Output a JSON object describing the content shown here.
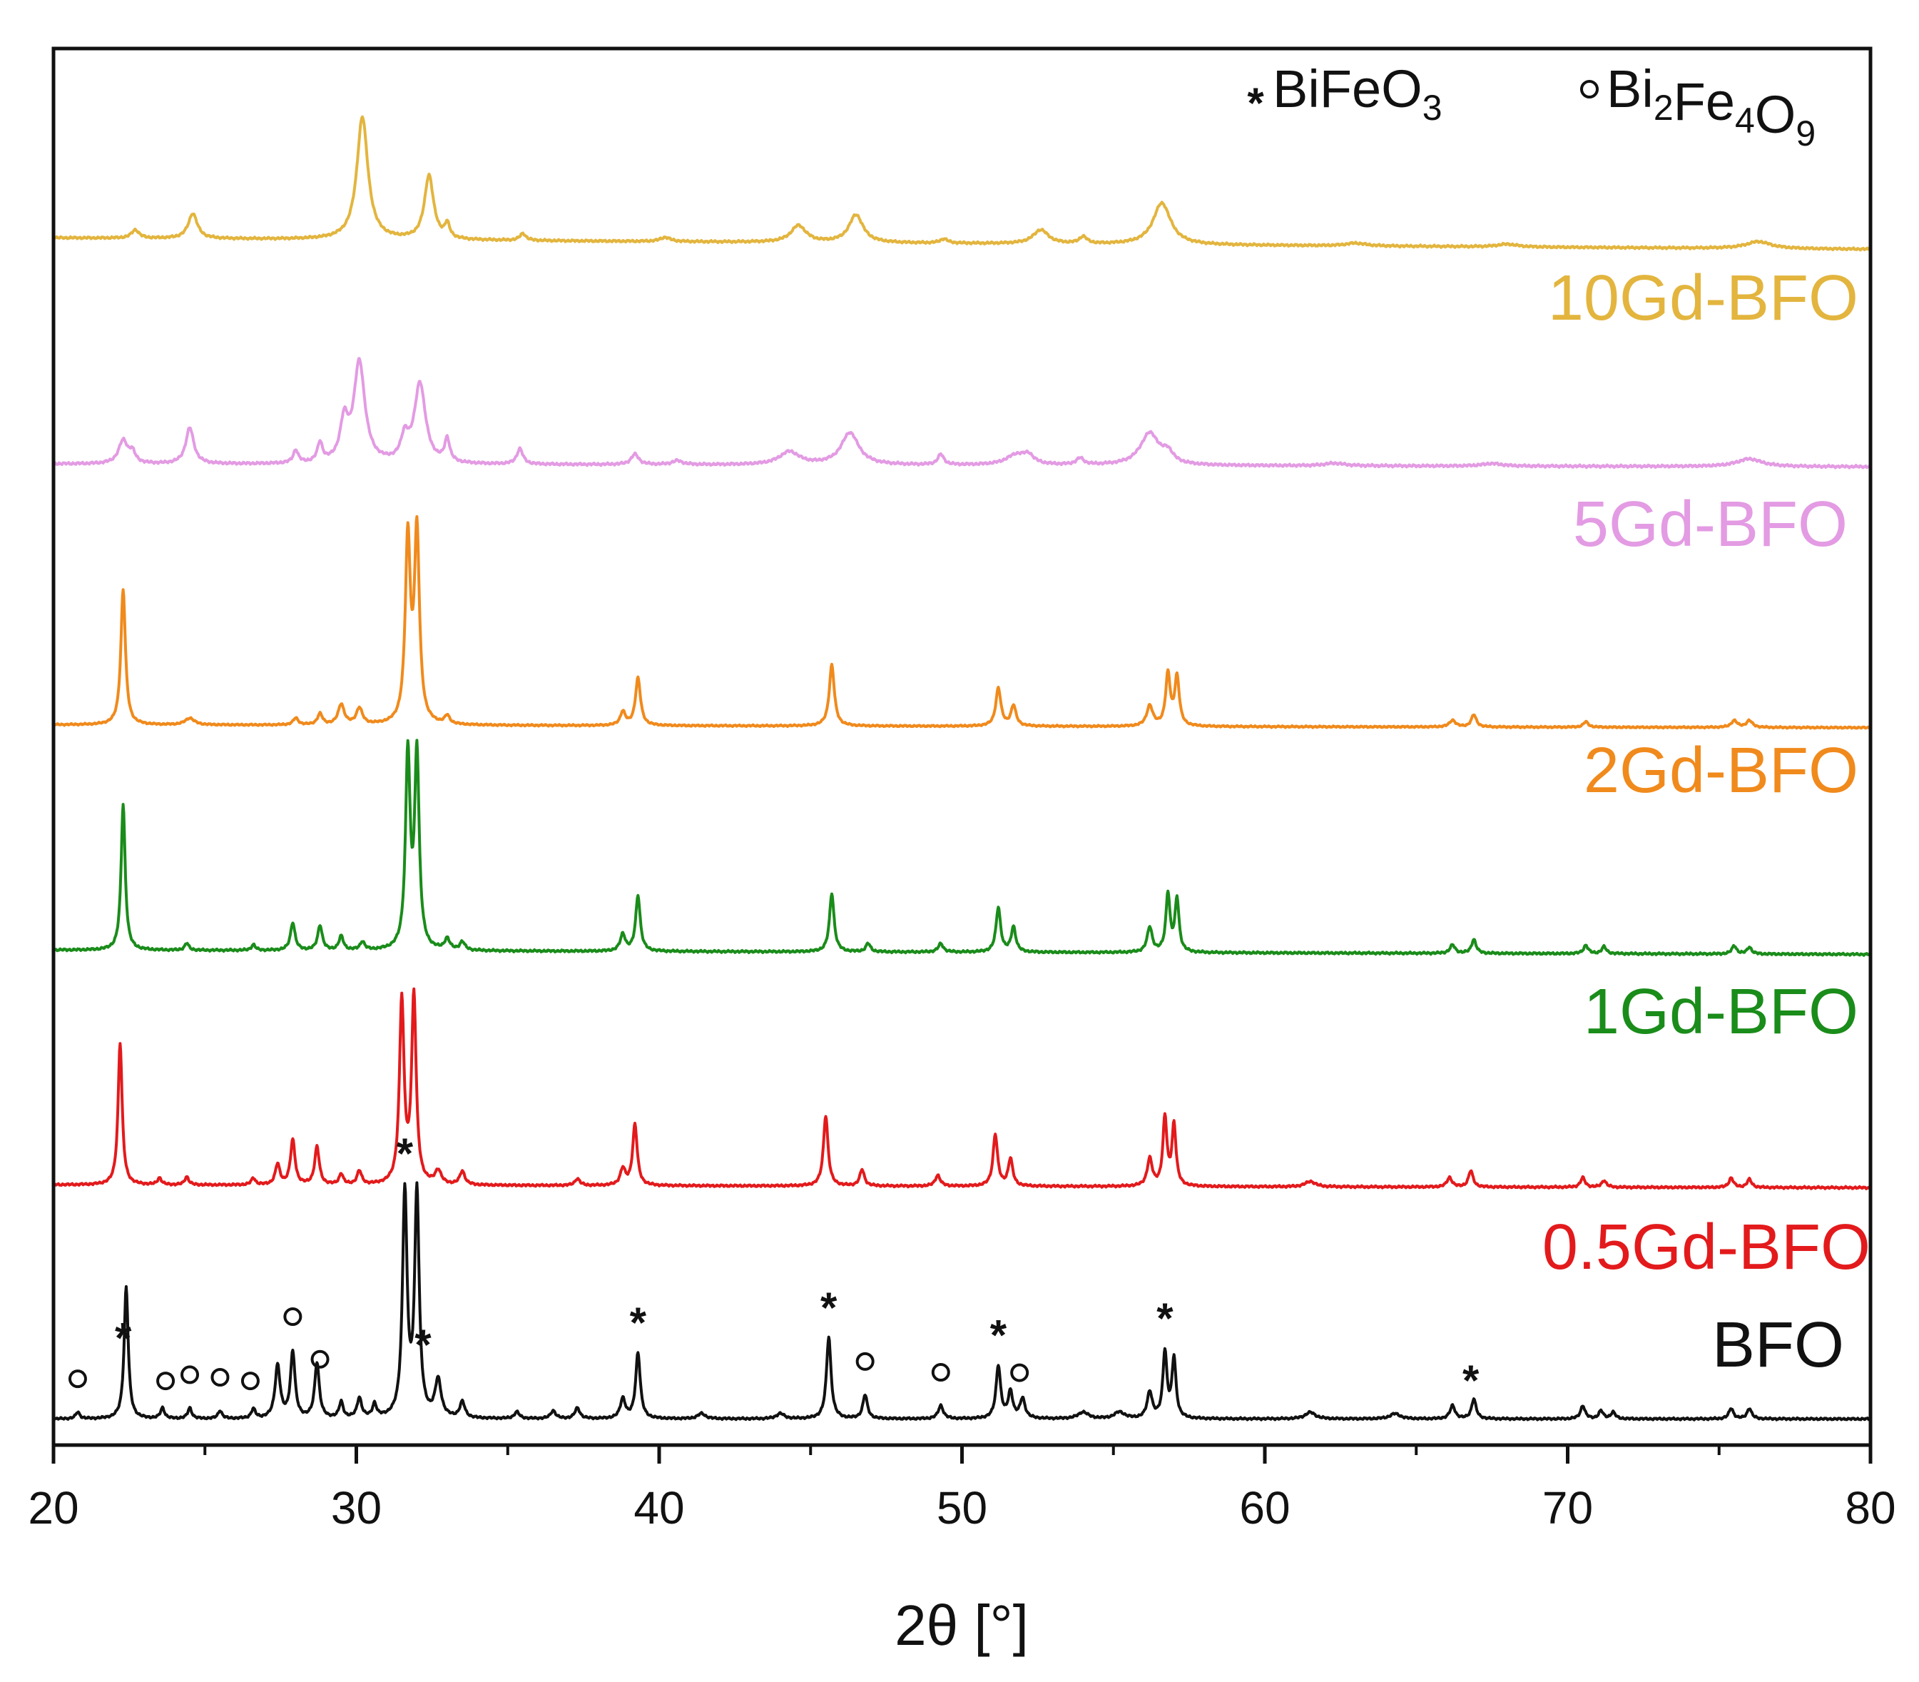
{
  "chart_data": {
    "type": "line",
    "title": "",
    "xlabel": "2θ [°]",
    "ylabel": "",
    "xlim": [
      20,
      80
    ],
    "xticks": [
      20,
      30,
      40,
      50,
      60,
      70,
      80
    ],
    "stacked_offsets": true,
    "legend": [
      {
        "symbol": "*",
        "text": "BiFeO",
        "sub": "3",
        "text2": "",
        "sub2": "",
        "text3": "",
        "sub3": ""
      },
      {
        "symbol": "o",
        "text": "Bi",
        "sub": "2",
        "text2": "Fe",
        "sub2": "4",
        "text3": "O",
        "sub3": "9"
      }
    ],
    "series": [
      {
        "name": "BFO",
        "color": "#111111",
        "noise": 0.05,
        "peaks": [
          [
            20.8,
            0.05,
            0.08
          ],
          [
            22.4,
            1.0,
            0.08
          ],
          [
            23.6,
            0.08,
            0.08
          ],
          [
            24.5,
            0.08,
            0.08
          ],
          [
            25.5,
            0.06,
            0.08
          ],
          [
            26.6,
            0.07,
            0.08
          ],
          [
            27.4,
            0.4,
            0.1
          ],
          [
            27.9,
            0.5,
            0.09
          ],
          [
            28.7,
            0.42,
            0.09
          ],
          [
            29.5,
            0.12,
            0.08
          ],
          [
            30.1,
            0.15,
            0.09
          ],
          [
            30.6,
            0.1,
            0.08
          ],
          [
            31.6,
            1.7,
            0.09
          ],
          [
            32.0,
            1.7,
            0.09
          ],
          [
            32.7,
            0.28,
            0.12
          ],
          [
            33.5,
            0.12,
            0.1
          ],
          [
            35.3,
            0.05,
            0.1
          ],
          [
            36.5,
            0.06,
            0.1
          ],
          [
            37.3,
            0.08,
            0.1
          ],
          [
            38.8,
            0.15,
            0.1
          ],
          [
            39.3,
            0.5,
            0.09
          ],
          [
            41.4,
            0.04,
            0.15
          ],
          [
            44.0,
            0.04,
            0.15
          ],
          [
            45.6,
            0.62,
            0.09
          ],
          [
            46.8,
            0.18,
            0.09
          ],
          [
            49.3,
            0.1,
            0.1
          ],
          [
            51.2,
            0.4,
            0.09
          ],
          [
            51.6,
            0.2,
            0.09
          ],
          [
            52.0,
            0.15,
            0.1
          ],
          [
            54.0,
            0.05,
            0.2
          ],
          [
            55.2,
            0.05,
            0.2
          ],
          [
            56.2,
            0.2,
            0.1
          ],
          [
            56.7,
            0.5,
            0.08
          ],
          [
            57.0,
            0.45,
            0.08
          ],
          [
            61.5,
            0.05,
            0.2
          ],
          [
            64.3,
            0.04,
            0.2
          ],
          [
            66.2,
            0.1,
            0.1
          ],
          [
            66.9,
            0.15,
            0.09
          ],
          [
            70.5,
            0.1,
            0.09
          ],
          [
            71.1,
            0.06,
            0.09
          ],
          [
            71.5,
            0.05,
            0.09
          ],
          [
            75.4,
            0.08,
            0.09
          ],
          [
            76.0,
            0.08,
            0.09
          ]
        ]
      },
      {
        "name": "0.5Gd-BFO",
        "color": "#e31a1c",
        "noise": 0.05,
        "peaks": [
          [
            22.2,
            1.05,
            0.08
          ],
          [
            23.5,
            0.05,
            0.08
          ],
          [
            24.4,
            0.06,
            0.08
          ],
          [
            26.6,
            0.05,
            0.08
          ],
          [
            27.4,
            0.15,
            0.09
          ],
          [
            27.9,
            0.33,
            0.09
          ],
          [
            28.7,
            0.28,
            0.09
          ],
          [
            29.5,
            0.08,
            0.08
          ],
          [
            30.1,
            0.1,
            0.09
          ],
          [
            31.5,
            1.35,
            0.09
          ],
          [
            31.9,
            1.38,
            0.09
          ],
          [
            32.7,
            0.1,
            0.12
          ],
          [
            33.5,
            0.1,
            0.1
          ],
          [
            37.3,
            0.05,
            0.1
          ],
          [
            38.8,
            0.12,
            0.1
          ],
          [
            39.2,
            0.45,
            0.09
          ],
          [
            45.5,
            0.52,
            0.09
          ],
          [
            46.7,
            0.12,
            0.09
          ],
          [
            49.2,
            0.08,
            0.1
          ],
          [
            51.1,
            0.38,
            0.09
          ],
          [
            51.6,
            0.2,
            0.09
          ],
          [
            56.2,
            0.2,
            0.1
          ],
          [
            56.7,
            0.5,
            0.08
          ],
          [
            57.0,
            0.45,
            0.08
          ],
          [
            61.5,
            0.04,
            0.2
          ],
          [
            66.1,
            0.07,
            0.1
          ],
          [
            66.8,
            0.12,
            0.09
          ],
          [
            70.5,
            0.07,
            0.09
          ],
          [
            71.2,
            0.05,
            0.09
          ],
          [
            75.4,
            0.07,
            0.09
          ],
          [
            76.0,
            0.06,
            0.09
          ]
        ]
      },
      {
        "name": "1Gd-BFO",
        "color": "#1a8c1a",
        "noise": 0.05,
        "peaks": [
          [
            22.3,
            1.05,
            0.08
          ],
          [
            24.4,
            0.05,
            0.08
          ],
          [
            26.6,
            0.04,
            0.08
          ],
          [
            27.9,
            0.2,
            0.09
          ],
          [
            28.8,
            0.18,
            0.09
          ],
          [
            29.5,
            0.1,
            0.09
          ],
          [
            30.2,
            0.06,
            0.09
          ],
          [
            31.7,
            1.4,
            0.09
          ],
          [
            32.0,
            1.4,
            0.09
          ],
          [
            33.0,
            0.08,
            0.1
          ],
          [
            33.5,
            0.06,
            0.1
          ],
          [
            38.8,
            0.12,
            0.1
          ],
          [
            39.3,
            0.4,
            0.09
          ],
          [
            45.7,
            0.42,
            0.09
          ],
          [
            46.9,
            0.06,
            0.09
          ],
          [
            49.3,
            0.06,
            0.1
          ],
          [
            51.2,
            0.32,
            0.09
          ],
          [
            51.7,
            0.18,
            0.09
          ],
          [
            56.2,
            0.18,
            0.1
          ],
          [
            56.8,
            0.42,
            0.08
          ],
          [
            57.1,
            0.38,
            0.08
          ],
          [
            66.2,
            0.06,
            0.1
          ],
          [
            66.9,
            0.1,
            0.09
          ],
          [
            70.6,
            0.06,
            0.09
          ],
          [
            71.2,
            0.05,
            0.09
          ],
          [
            75.5,
            0.06,
            0.09
          ],
          [
            76.0,
            0.05,
            0.09
          ]
        ]
      },
      {
        "name": "2Gd-BFO",
        "color": "#f08a1c",
        "noise": 0.04,
        "peaks": [
          [
            22.3,
            1.0,
            0.09
          ],
          [
            24.5,
            0.05,
            0.18
          ],
          [
            28.0,
            0.05,
            0.1
          ],
          [
            28.8,
            0.08,
            0.1
          ],
          [
            29.5,
            0.15,
            0.12
          ],
          [
            30.1,
            0.12,
            0.12
          ],
          [
            31.7,
            1.35,
            0.1
          ],
          [
            32.0,
            1.4,
            0.1
          ],
          [
            33.0,
            0.06,
            0.1
          ],
          [
            38.8,
            0.1,
            0.1
          ],
          [
            39.3,
            0.35,
            0.1
          ],
          [
            45.7,
            0.45,
            0.1
          ],
          [
            51.2,
            0.28,
            0.1
          ],
          [
            51.7,
            0.15,
            0.1
          ],
          [
            56.2,
            0.15,
            0.12
          ],
          [
            56.8,
            0.38,
            0.09
          ],
          [
            57.1,
            0.36,
            0.09
          ],
          [
            66.2,
            0.05,
            0.12
          ],
          [
            66.9,
            0.09,
            0.1
          ],
          [
            70.6,
            0.04,
            0.1
          ],
          [
            75.5,
            0.05,
            0.12
          ],
          [
            76.0,
            0.05,
            0.12
          ]
        ]
      },
      {
        "name": "5Gd-BFO",
        "color": "#e39be3",
        "noise": 0.06,
        "peaks": [
          [
            22.3,
            0.18,
            0.18
          ],
          [
            22.6,
            0.08,
            0.12
          ],
          [
            24.5,
            0.28,
            0.16
          ],
          [
            28.0,
            0.1,
            0.1
          ],
          [
            28.8,
            0.15,
            0.1
          ],
          [
            29.6,
            0.3,
            0.16
          ],
          [
            30.1,
            0.78,
            0.22
          ],
          [
            31.6,
            0.18,
            0.15
          ],
          [
            32.1,
            0.62,
            0.22
          ],
          [
            33.0,
            0.18,
            0.1
          ],
          [
            35.4,
            0.12,
            0.12
          ],
          [
            39.2,
            0.08,
            0.15
          ],
          [
            40.6,
            0.03,
            0.2
          ],
          [
            44.3,
            0.1,
            0.4
          ],
          [
            46.3,
            0.25,
            0.35
          ],
          [
            49.3,
            0.08,
            0.12
          ],
          [
            51.8,
            0.08,
            0.4
          ],
          [
            52.2,
            0.06,
            0.2
          ],
          [
            53.9,
            0.05,
            0.15
          ],
          [
            56.2,
            0.25,
            0.38
          ],
          [
            56.8,
            0.08,
            0.2
          ],
          [
            62.3,
            0.02,
            0.4
          ],
          [
            67.5,
            0.02,
            0.4
          ],
          [
            76.0,
            0.06,
            0.5
          ]
        ]
      },
      {
        "name": "10Gd-BFO",
        "color": "#e3b53e",
        "noise": 0.05,
        "peaks": [
          [
            22.7,
            0.06,
            0.15
          ],
          [
            24.6,
            0.18,
            0.18
          ],
          [
            30.2,
            0.88,
            0.22
          ],
          [
            32.4,
            0.46,
            0.18
          ],
          [
            33.0,
            0.1,
            0.1
          ],
          [
            35.5,
            0.05,
            0.12
          ],
          [
            40.2,
            0.03,
            0.2
          ],
          [
            44.6,
            0.12,
            0.3
          ],
          [
            46.5,
            0.2,
            0.28
          ],
          [
            49.4,
            0.03,
            0.15
          ],
          [
            52.6,
            0.1,
            0.3
          ],
          [
            54.0,
            0.05,
            0.15
          ],
          [
            56.6,
            0.3,
            0.35
          ],
          [
            63.0,
            0.02,
            0.4
          ],
          [
            68.0,
            0.02,
            0.4
          ],
          [
            76.3,
            0.05,
            0.5
          ]
        ]
      }
    ],
    "annotations": {
      "stars": [
        22.3,
        31.6,
        32.2,
        39.3,
        45.6,
        51.2,
        56.7,
        66.8
      ],
      "circles": [
        20.8,
        23.7,
        24.5,
        25.5,
        26.5,
        27.9,
        28.8,
        46.8,
        49.3,
        51.9
      ]
    }
  }
}
